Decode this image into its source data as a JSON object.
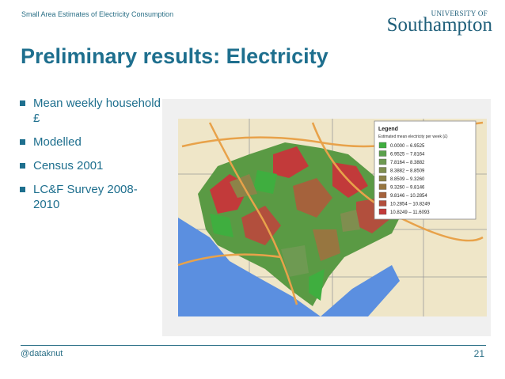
{
  "header": {
    "caption": "Small Area Estimates of Electricity Consumption"
  },
  "logo": {
    "line1": "UNIVERSITY OF",
    "line2": "Southampton"
  },
  "title": "Preliminary results: Electricity",
  "bullets": [
    "Mean weekly household £",
    "Modelled",
    "Census 2001",
    "LC&F Survey 2008-2010"
  ],
  "map": {
    "legend_title": "Legend",
    "legend_subtitle": "Estimated mean electricity per week (£)",
    "legend_items": [
      {
        "label": "0.0000 – 6.9525",
        "color": "#3fae3f"
      },
      {
        "label": "6.9525 – 7.8164",
        "color": "#5aa04c"
      },
      {
        "label": "7.8164 – 8.3882",
        "color": "#6e9a52"
      },
      {
        "label": "8.3882 – 8.8509",
        "color": "#7f8e4f"
      },
      {
        "label": "8.8509 – 9.3260",
        "color": "#8c8348"
      },
      {
        "label": "9.3260 – 9.8146",
        "color": "#977640"
      },
      {
        "label": "9.8146 – 10.2854",
        "color": "#a5623c"
      },
      {
        "label": "10.2854 – 10.8249",
        "color": "#b24f3d"
      },
      {
        "label": "10.8249 – 11.6093",
        "color": "#c23a3a"
      }
    ]
  },
  "footer": {
    "handle": "@dataknut",
    "page_number": "21"
  }
}
